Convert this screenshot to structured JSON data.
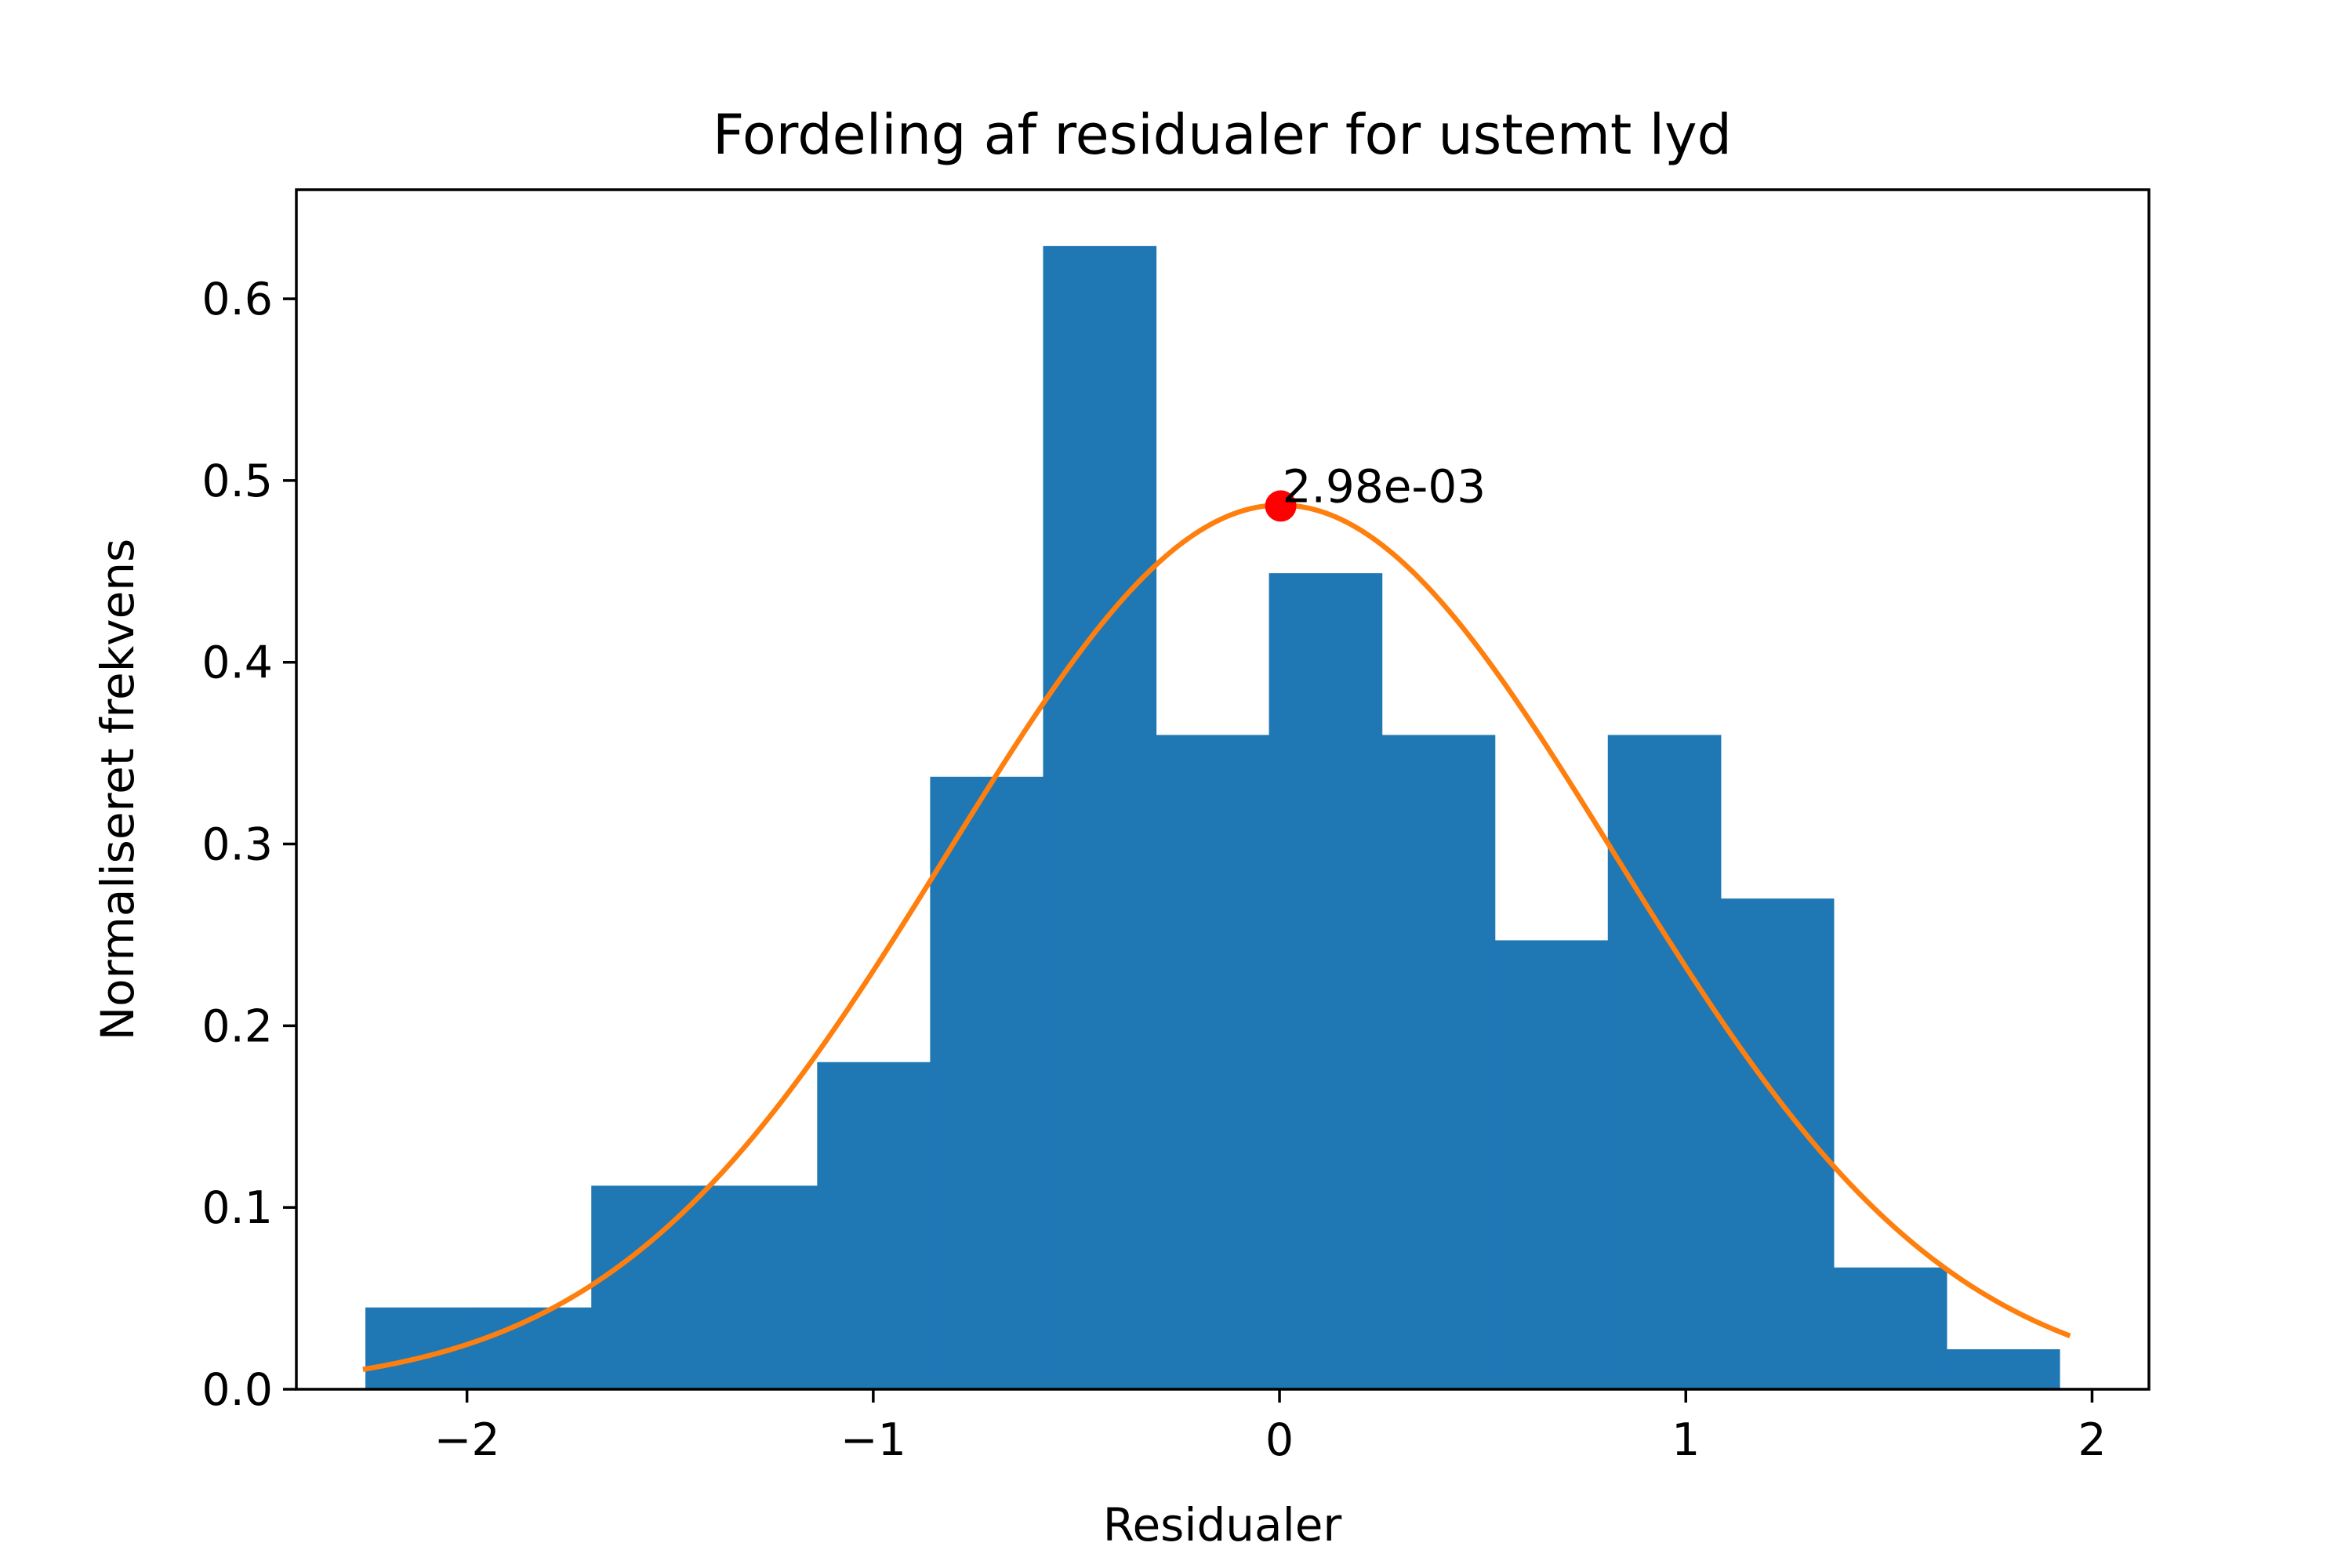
{
  "chart_data": {
    "type": "bar",
    "title": "Fordeling af residualer for ustemt lyd",
    "xlabel": "Residualer",
    "ylabel": "Normaliseret frekvens",
    "xlim": [
      -2.42,
      2.14
    ],
    "ylim": [
      0.0,
      0.66
    ],
    "xticks": [
      -2,
      -1,
      0,
      1,
      2
    ],
    "xtick_labels": [
      "−2",
      "−1",
      "0",
      "1",
      "2"
    ],
    "yticks": [
      0.0,
      0.1,
      0.2,
      0.3,
      0.4,
      0.5,
      0.6
    ],
    "ytick_labels": [
      "0.0",
      "0.1",
      "0.2",
      "0.3",
      "0.4",
      "0.5",
      "0.6"
    ],
    "grid": false,
    "histogram": {
      "color": "#1f77b4",
      "bin_edges": [
        -2.25,
        -1.972,
        -1.694,
        -1.416,
        -1.138,
        -0.86,
        -0.582,
        -0.304,
        -0.026,
        0.252,
        0.53,
        0.808,
        1.086,
        1.364,
        1.642,
        1.92
      ],
      "values": [
        0.045,
        0.045,
        0.112,
        0.112,
        0.18,
        0.337,
        0.629,
        0.36,
        0.449,
        0.36,
        0.247,
        0.36,
        0.27,
        0.067,
        0.022
      ]
    },
    "fit_curve": {
      "type": "normal_pdf",
      "color": "#ff7f0e",
      "mean": 0.00298,
      "std": 0.82,
      "x_range": [
        -2.25,
        1.94
      ]
    },
    "peak_marker": {
      "x": 0.00298,
      "y": 0.486,
      "color": "#ff0000",
      "label": "2.98e-03"
    }
  }
}
